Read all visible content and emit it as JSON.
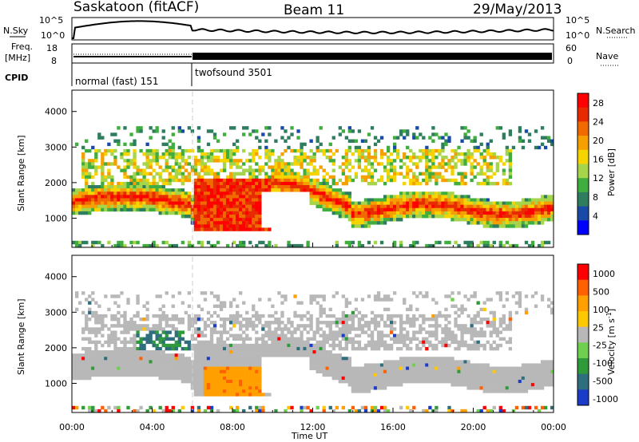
{
  "header": {
    "site": "Saskatoon (fitACF)",
    "beam": "Beam 11",
    "date": "29/May/2013"
  },
  "nsky_panel": {
    "left_label": "N.Sky",
    "right_label": "N.Search",
    "left_ticks": [
      "10^5",
      "10^0"
    ],
    "right_ticks": [
      "10^5",
      "10^0"
    ]
  },
  "freq_panel": {
    "left_label_1": "Freq.",
    "left_label_2": "[MHz]",
    "right_label": "Nave",
    "left_ticks": [
      "18",
      "8"
    ],
    "right_ticks": [
      "60",
      "0"
    ]
  },
  "cpid_panel": {
    "label": "CPID",
    "modes": [
      {
        "name": "normal (fast) 151",
        "start_hour": 0
      },
      {
        "name": "twofsound 3501",
        "start_hour": 6
      }
    ]
  },
  "x_axis": {
    "label": "Time UT",
    "ticks": [
      "00:00",
      "04:00",
      "08:00",
      "12:00",
      "16:00",
      "20:00",
      "00:00"
    ],
    "range_hours": [
      0,
      24
    ]
  },
  "chart_data": [
    {
      "type": "heatmap",
      "title": "",
      "xlabel": "Time UT",
      "ylabel": "Slant Range [km]",
      "yticks": [
        "1000",
        "2000",
        "3000",
        "4000"
      ],
      "ylim": [
        180,
        4600
      ],
      "colorbar": {
        "label": "Power [dB]",
        "ticks": [
          "4",
          "8",
          "12",
          "16",
          "20",
          "24",
          "28"
        ],
        "range": [
          0,
          30
        ],
        "colors": [
          "#0000ff",
          "#1a4aa8",
          "#2e7d5e",
          "#3fae3f",
          "#a6d44a",
          "#f5d400",
          "#f5a000",
          "#f06a00",
          "#e82a00",
          "#ff0000"
        ]
      }
    },
    {
      "type": "heatmap",
      "title": "",
      "xlabel": "Time UT",
      "ylabel": "Slant Range [km]",
      "yticks": [
        "1000",
        "2000",
        "3000",
        "4000"
      ],
      "ylim": [
        180,
        4600
      ],
      "colorbar": {
        "label": "Velocity [m s^-1]",
        "ticks": [
          "1000",
          "500",
          "100",
          "25",
          "-25",
          "-100",
          "-500",
          "-1000"
        ],
        "colors": [
          "#1a3cc8",
          "#2e6e7e",
          "#2f9a3a",
          "#6fd04f",
          "#b8b8b8",
          "#ffc800",
          "#ffa000",
          "#ff6000",
          "#ff0000"
        ]
      }
    }
  ]
}
